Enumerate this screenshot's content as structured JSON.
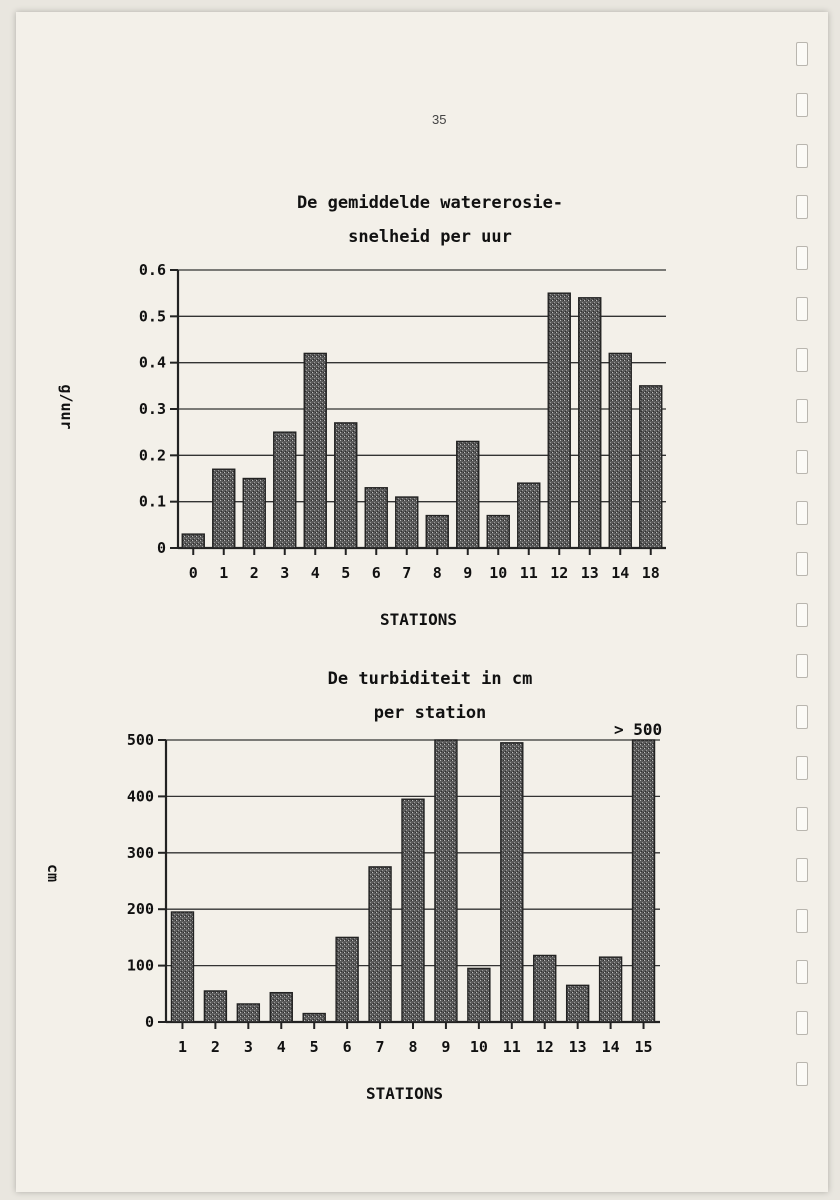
{
  "page_number": "35",
  "chart_data": [
    {
      "type": "bar",
      "title": "De gemiddelde watererosie-\nsnelheid per uur",
      "xlabel": "STATIONS",
      "ylabel": "g/uur",
      "ylim": [
        0,
        0.6
      ],
      "yticks": [
        0,
        0.1,
        0.2,
        0.3,
        0.4,
        0.5,
        0.6
      ],
      "ytick_labels": [
        "0",
        "0.1",
        "0.2",
        "0.3",
        "0.4",
        "0.5",
        "0.6"
      ],
      "categories": [
        "0",
        "1",
        "2",
        "3",
        "4",
        "5",
        "6",
        "7",
        "8",
        "9",
        "10",
        "11",
        "12",
        "13",
        "14",
        "18"
      ],
      "values": [
        0.03,
        0.17,
        0.15,
        0.25,
        0.42,
        0.27,
        0.13,
        0.11,
        0.07,
        0.23,
        0.07,
        0.14,
        0.55,
        0.54,
        0.42,
        0.35
      ],
      "grid": "horizontal"
    },
    {
      "type": "bar",
      "title": "De turbiditeit in cm\nper station",
      "xlabel": "STATIONS",
      "ylabel": "cm",
      "ylim": [
        0,
        500
      ],
      "yticks": [
        0,
        100,
        200,
        300,
        400,
        500
      ],
      "ytick_labels": [
        "0",
        "100",
        "200",
        "300",
        "400",
        "500"
      ],
      "categories": [
        "1",
        "2",
        "3",
        "4",
        "5",
        "6",
        "7",
        "8",
        "9",
        "10",
        "11",
        "12",
        "13",
        "14",
        "15"
      ],
      "values": [
        195,
        55,
        32,
        52,
        15,
        150,
        275,
        395,
        500,
        95,
        495,
        118,
        65,
        115,
        500
      ],
      "annotation": "> 500",
      "grid": "horizontal"
    }
  ]
}
